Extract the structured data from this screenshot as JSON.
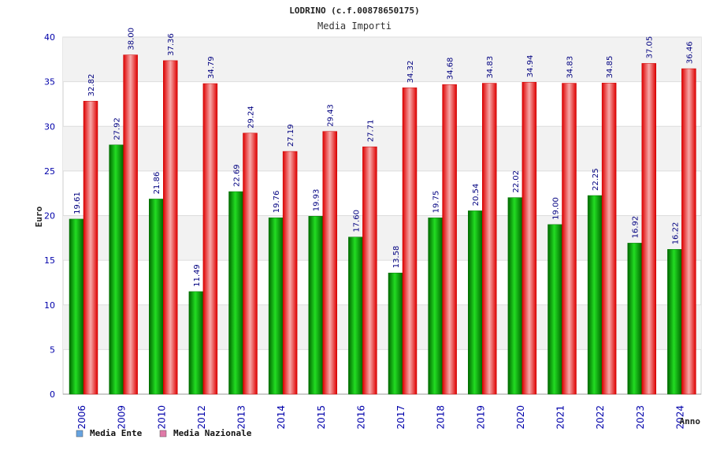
{
  "chart_data": {
    "type": "bar",
    "title": "LODRINO (c.f.00878650175)",
    "subtitle": "Media Importi",
    "xlabel": "Anno",
    "ylabel": "Euro",
    "ylim": [
      0,
      40
    ],
    "yticks": [
      0,
      5,
      10,
      15,
      20,
      25,
      30,
      35,
      40
    ],
    "grid": true,
    "legend_position": "bottom-left",
    "categories": [
      "2006",
      "2009",
      "2010",
      "2012",
      "2013",
      "2014",
      "2015",
      "2016",
      "2017",
      "2018",
      "2019",
      "2020",
      "2021",
      "2022",
      "2023",
      "2024"
    ],
    "series": [
      {
        "name": "Media Ente",
        "color": "#00cc00",
        "legend_color": "#66a3e0",
        "values": [
          19.61,
          27.92,
          21.86,
          11.49,
          22.69,
          19.76,
          19.93,
          17.6,
          13.58,
          19.75,
          20.54,
          22.02,
          19.0,
          22.25,
          16.92,
          16.22
        ],
        "labels": [
          "19.61",
          "27.92",
          "21.86",
          "11.49",
          "22.69",
          "19.76",
          "19.93",
          "17.60",
          "13.58",
          "19.75",
          "20.54",
          "22.02",
          "19.00",
          "22.25",
          "16.92",
          "16.22"
        ]
      },
      {
        "name": "Media Nazionale",
        "color": "#ee1111",
        "legend_color": "#e07aa8",
        "values": [
          32.82,
          38.0,
          37.36,
          34.79,
          29.24,
          27.19,
          29.43,
          27.71,
          34.32,
          34.68,
          34.83,
          34.94,
          34.83,
          34.85,
          37.05,
          36.46
        ],
        "labels": [
          "32.82",
          "38.00",
          "37.36",
          "34.79",
          "29.24",
          "27.19",
          "29.43",
          "27.71",
          "34.32",
          "34.68",
          "34.83",
          "34.94",
          "34.83",
          "34.85",
          "37.05",
          "36.46"
        ]
      }
    ]
  }
}
